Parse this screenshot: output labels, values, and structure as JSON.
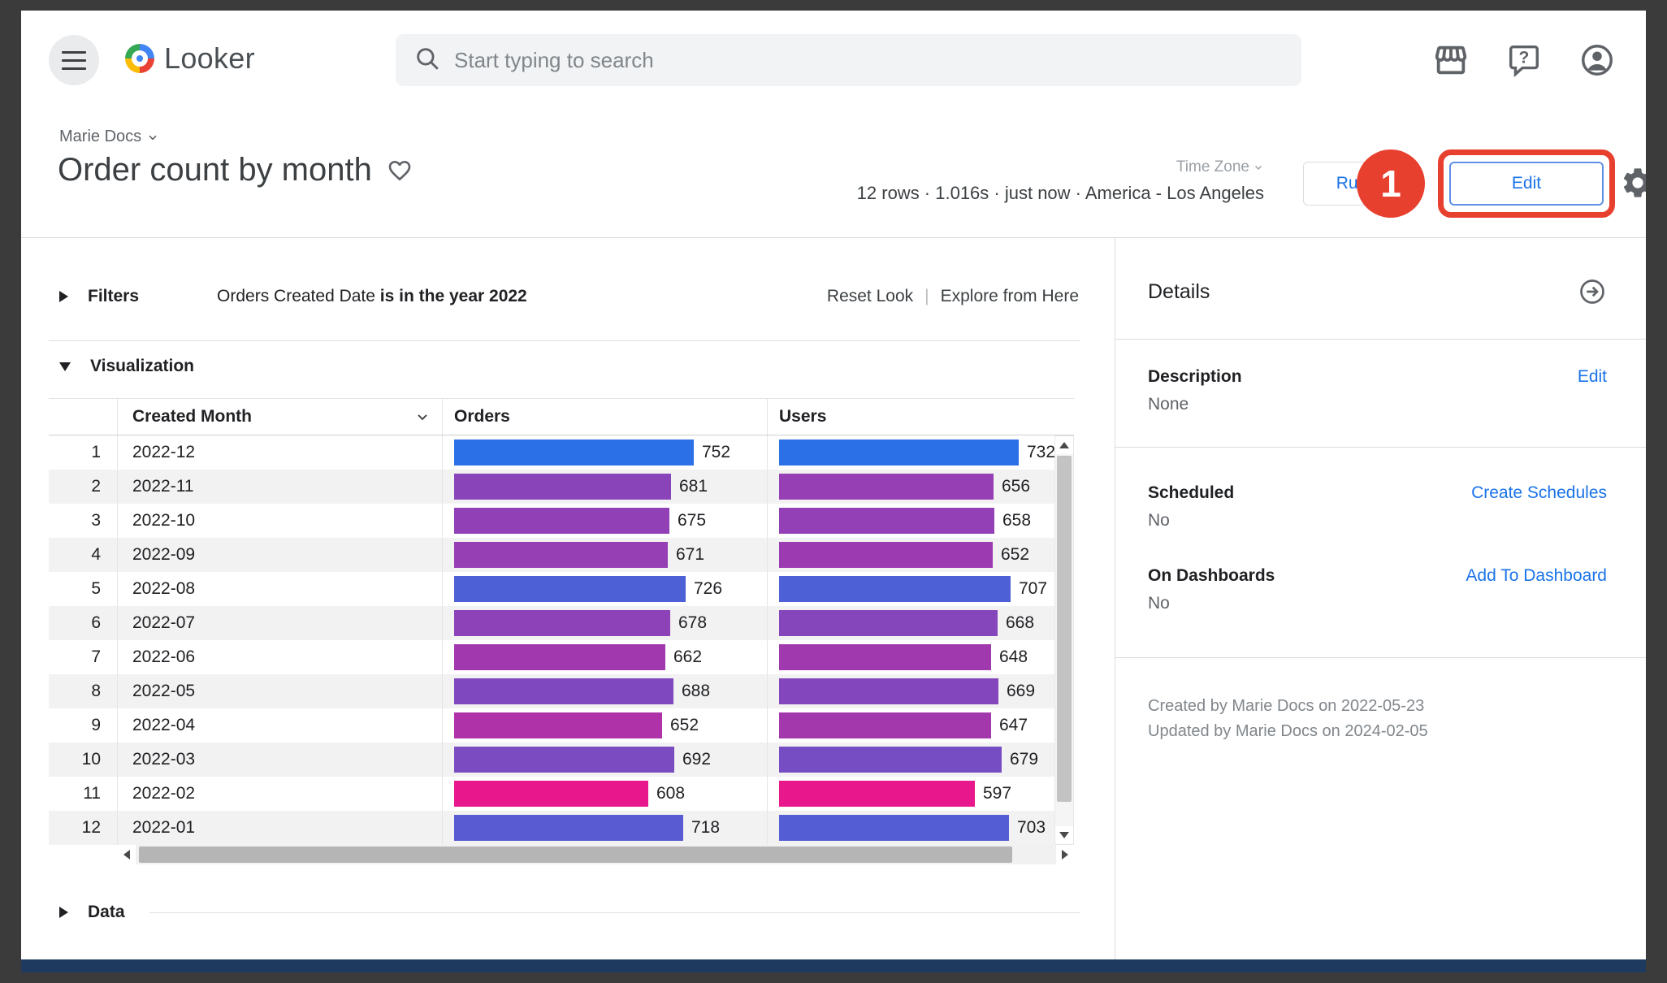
{
  "topbar": {
    "logo_text": "Looker",
    "search_placeholder": "Start typing to search"
  },
  "header": {
    "breadcrumb": "Marie Docs",
    "title": "Order count by month",
    "timezone_label": "Time Zone",
    "status": "12 rows · 1.016s · just now · America - Los Angeles",
    "run_label": "Run",
    "edit_label": "Edit"
  },
  "annotation": {
    "step_number": "1",
    "highlight_color": "#e8402f"
  },
  "filters": {
    "section_label": "Filters",
    "field": "Orders Created Date ",
    "condition": "is in the year 2022",
    "reset_label": "Reset Look",
    "separator": "|",
    "explore_label": "Explore from Here"
  },
  "visualization": {
    "section_label": "Visualization"
  },
  "data_section": {
    "section_label": "Data"
  },
  "chart_data": {
    "type": "table",
    "columns": [
      "Created Month",
      "Orders",
      "Users"
    ],
    "rows": [
      {
        "index": 1,
        "month": "2022-12",
        "orders": 752,
        "users": 732
      },
      {
        "index": 2,
        "month": "2022-11",
        "orders": 681,
        "users": 656
      },
      {
        "index": 3,
        "month": "2022-10",
        "orders": 675,
        "users": 658
      },
      {
        "index": 4,
        "month": "2022-09",
        "orders": 671,
        "users": 652
      },
      {
        "index": 5,
        "month": "2022-08",
        "orders": 726,
        "users": 707
      },
      {
        "index": 6,
        "month": "2022-07",
        "orders": 678,
        "users": 668
      },
      {
        "index": 7,
        "month": "2022-06",
        "orders": 662,
        "users": 648
      },
      {
        "index": 8,
        "month": "2022-05",
        "orders": 688,
        "users": 669
      },
      {
        "index": 9,
        "month": "2022-04",
        "orders": 652,
        "users": 647
      },
      {
        "index": 10,
        "month": "2022-03",
        "orders": 692,
        "users": 679
      },
      {
        "index": 11,
        "month": "2022-02",
        "orders": 608,
        "users": 597
      },
      {
        "index": 12,
        "month": "2022-01",
        "orders": 718,
        "users": 703
      }
    ],
    "orders_range": [
      608,
      752
    ],
    "users_range": [
      597,
      732
    ],
    "bar_gradient": {
      "low_color": "#E9178C",
      "high_color": "#2B70E6"
    },
    "bar_scaling": "width proportional to value relative to column max"
  },
  "details": {
    "title": "Details",
    "description_label": "Description",
    "description_value": "None",
    "edit_link": "Edit",
    "scheduled_label": "Scheduled",
    "scheduled_value": "No",
    "create_schedules_link": "Create Schedules",
    "dashboards_label": "On Dashboards",
    "dashboards_value": "No",
    "add_dashboard_link": "Add To Dashboard",
    "created_text": "Created by Marie Docs on 2022-05-23",
    "updated_text": "Updated by Marie Docs on 2024-02-05"
  }
}
